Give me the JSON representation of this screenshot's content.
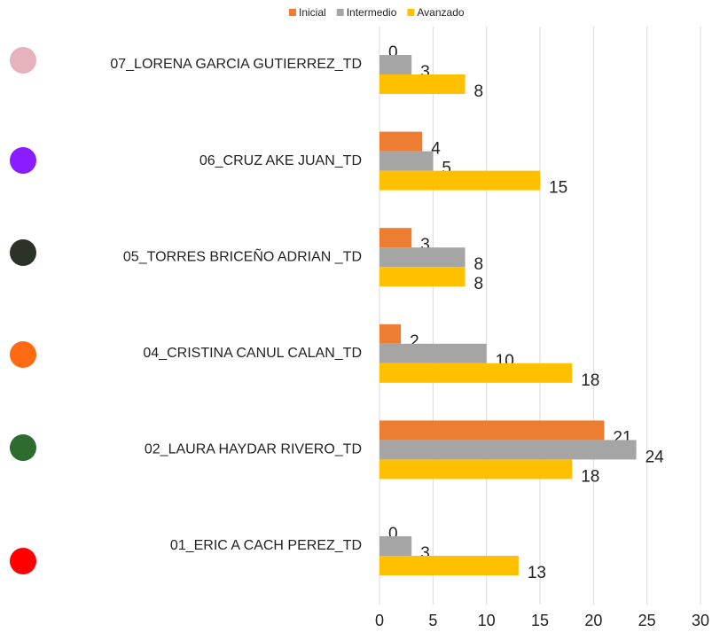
{
  "chart_data": {
    "type": "bar",
    "orientation": "horizontal",
    "categories": [
      "07_LORENA GARCIA GUTIERREZ_TD",
      "06_CRUZ AKE JUAN_TD",
      "05_TORRES BRICEÑO ADRIAN _TD",
      "04_CRISTINA CANUL CALAN_TD",
      "02_LAURA HAYDAR RIVERO_TD",
      "01_ERIC A CACH PEREZ_TD"
    ],
    "series": [
      {
        "name": "Inicial",
        "color": "#ed7d31",
        "values": [
          0,
          4,
          3,
          2,
          21,
          0
        ]
      },
      {
        "name": "Intermedio",
        "color": "#a5a5a5",
        "values": [
          3,
          5,
          8,
          10,
          24,
          3
        ]
      },
      {
        "name": "Avanzado",
        "color": "#ffc000",
        "values": [
          8,
          15,
          8,
          18,
          18,
          13
        ]
      }
    ],
    "xlim": [
      0,
      30
    ],
    "xticks": [
      0,
      5,
      10,
      15,
      20,
      25,
      30
    ],
    "grid": true,
    "legend": "top"
  }
}
